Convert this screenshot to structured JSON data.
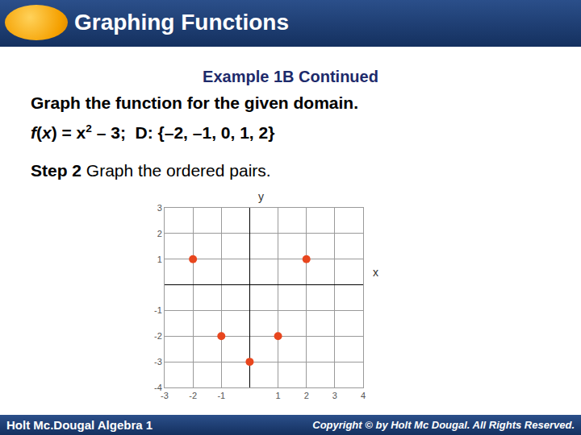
{
  "slide": {
    "header": "Graphing Functions",
    "example": "Example 1B Continued",
    "instruction": "Graph the function for the given domain.",
    "function_line": [
      {
        "text": "f",
        "style": "italic"
      },
      {
        "text": "(",
        "style": "normal"
      },
      {
        "text": "x",
        "style": "italic"
      },
      {
        "text": ") = x",
        "style": "normal"
      },
      {
        "text": "2",
        "style": "sup"
      },
      {
        "text": " – 3;  D: {–2, –1, 0, 1, 2}",
        "style": "normal"
      }
    ],
    "step_line": [
      {
        "text": "Step 2",
        "style": "bold"
      },
      {
        "text": " Graph the ordered pairs.",
        "style": "normal"
      }
    ],
    "footer_left": "Holt Mc.Dougal Algebra 1",
    "footer_right": "Copyright © by Holt Mc Dougal. All Rights Reserved."
  },
  "chart_data": {
    "type": "scatter",
    "x_label": "x",
    "y_label": "y",
    "x": [
      -2,
      -1,
      0,
      1,
      2
    ],
    "values": [
      1,
      -2,
      -3,
      -2,
      1
    ],
    "color": "#e8461e",
    "marker": "circle",
    "xlim": [
      -3,
      4
    ],
    "ylim": [
      -4,
      3
    ],
    "xticks": [
      -3,
      -2,
      -1,
      1,
      2,
      3,
      4
    ],
    "yticks": [
      -4,
      -3,
      -2,
      -1,
      1,
      2,
      3
    ],
    "grid": true
  }
}
